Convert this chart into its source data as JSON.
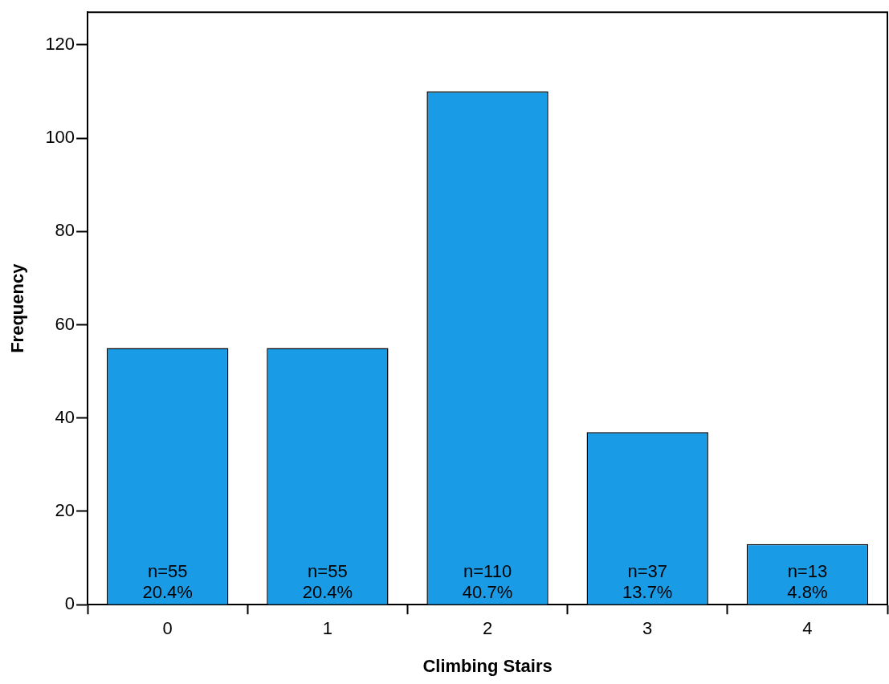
{
  "chart_data": {
    "type": "bar",
    "xlabel": "Climbing Stairs",
    "ylabel": "Frequency",
    "categories": [
      "0",
      "1",
      "2",
      "3",
      "4"
    ],
    "values": [
      55,
      55,
      110,
      37,
      13
    ],
    "color": "#1a9be6",
    "value_labels": [
      "n=55\n20.4%",
      "n=55\n20.4%",
      "n=110\n40.7%",
      "n=37\n13.7%",
      "n=13\n4.8%"
    ],
    "ylim": [
      0,
      127
    ],
    "yticks": [
      0,
      20,
      40,
      60,
      80,
      100,
      120
    ]
  }
}
